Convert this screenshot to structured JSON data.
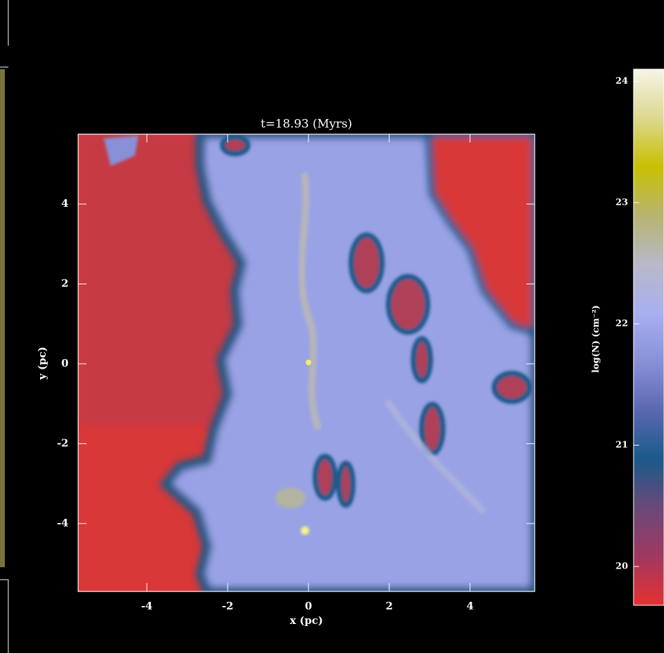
{
  "chart_data": {
    "type": "image",
    "title": "t=18.93 (Myrs)",
    "x_label": "x (pc)",
    "y_label": "y (pc)",
    "xlim": [
      -5.7,
      5.6
    ],
    "ylim": [
      -5.7,
      5.75
    ],
    "xticks": [
      -4,
      -2,
      0,
      2,
      4
    ],
    "yticks": [
      -4,
      -2,
      0,
      2,
      4
    ],
    "colorbar_label": "log(N) (cm⁻²)",
    "clim": [
      19.68,
      24.1
    ],
    "cticks": [
      20,
      21,
      22,
      23,
      24
    ],
    "colormap": [
      "#e83030",
      "#a03860",
      "#6a4878",
      "#1a5a8a",
      "#5a68b0",
      "#8890d8",
      "#a8b0f0",
      "#b8b8c8",
      "#b8b470",
      "#c8c000",
      "#dcd890",
      "#f8f4e8"
    ]
  }
}
